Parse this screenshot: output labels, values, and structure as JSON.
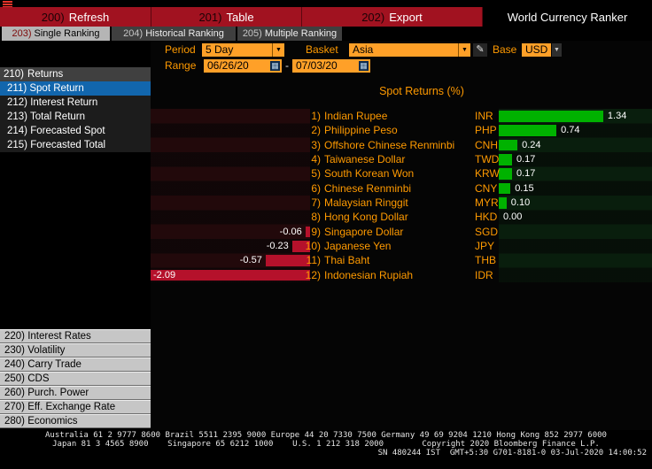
{
  "topbar": {
    "menu": [
      {
        "num": "200)",
        "label": "Refresh"
      },
      {
        "num": "201)",
        "label": "Table"
      },
      {
        "num": "202)",
        "label": "Export"
      }
    ],
    "app_title": "World Currency Ranker"
  },
  "tabs": [
    {
      "num": "203)",
      "label": "Single Ranking",
      "active": true
    },
    {
      "num": "204)",
      "label": "Historical Ranking",
      "active": false
    },
    {
      "num": "205)",
      "label": "Multiple Ranking",
      "active": false
    }
  ],
  "sidebar": {
    "header": {
      "num": "210)",
      "label": "Returns"
    },
    "items": [
      {
        "num": "211)",
        "label": "Spot Return",
        "selected": true
      },
      {
        "num": "212)",
        "label": "Interest Return",
        "selected": false
      },
      {
        "num": "213)",
        "label": "Total Return",
        "selected": false
      },
      {
        "num": "214)",
        "label": "Forecasted Spot",
        "selected": false
      },
      {
        "num": "215)",
        "label": "Forecasted Total",
        "selected": false
      }
    ],
    "bottom_items": [
      {
        "num": "220)",
        "label": "Interest Rates"
      },
      {
        "num": "230)",
        "label": "Volatility"
      },
      {
        "num": "240)",
        "label": "Carry Trade"
      },
      {
        "num": "250)",
        "label": "CDS"
      },
      {
        "num": "260)",
        "label": "Purch. Power"
      },
      {
        "num": "270)",
        "label": "Eff. Exchange Rate"
      },
      {
        "num": "280)",
        "label": "Economics"
      }
    ]
  },
  "controls": {
    "period_label": "Period",
    "period_value": "5 Day",
    "basket_label": "Basket",
    "basket_value": "Asia",
    "base_label": "Base",
    "base_value": "USD",
    "range_label": "Range",
    "range_start": "06/26/20",
    "range_separator": "-",
    "range_end": "07/03/20"
  },
  "chart_data": {
    "type": "bar",
    "orientation": "horizontal",
    "title": "Spot Returns (%)",
    "value_unit": "percent",
    "xlim": [
      -2.2,
      1.6
    ],
    "positive_color": "#00b200",
    "negative_color": "#b5112b",
    "rows": [
      {
        "rank": "1)",
        "name": "Indian Rupee",
        "ticker": "INR",
        "value": 1.34
      },
      {
        "rank": "2)",
        "name": "Philippine Peso",
        "ticker": "PHP",
        "value": 0.74
      },
      {
        "rank": "3)",
        "name": "Offshore Chinese Renminbi",
        "ticker": "CNH",
        "value": 0.24
      },
      {
        "rank": "4)",
        "name": "Taiwanese Dollar",
        "ticker": "TWD",
        "value": 0.17
      },
      {
        "rank": "5)",
        "name": "South Korean Won",
        "ticker": "KRW",
        "value": 0.17
      },
      {
        "rank": "6)",
        "name": "Chinese Renminbi",
        "ticker": "CNY",
        "value": 0.15
      },
      {
        "rank": "7)",
        "name": "Malaysian Ringgit",
        "ticker": "MYR",
        "value": 0.1
      },
      {
        "rank": "8)",
        "name": "Hong Kong Dollar",
        "ticker": "HKD",
        "value": 0.0
      },
      {
        "rank": "9)",
        "name": "Singapore Dollar",
        "ticker": "SGD",
        "value": -0.06
      },
      {
        "rank": "10)",
        "name": "Japanese Yen",
        "ticker": "JPY",
        "value": -0.23
      },
      {
        "rank": "11)",
        "name": "Thai Baht",
        "ticker": "THB",
        "value": -0.57
      },
      {
        "rank": "12)",
        "name": "Indonesian Rupiah",
        "ticker": "IDR",
        "value": -2.09
      }
    ]
  },
  "footer": {
    "line1": "Australia 61 2 9777 8600 Brazil 5511 2395 9000 Europe 44 20 7330 7500 Germany 49 69 9204 1210 Hong Kong 852 2977 6000",
    "line2": "Japan 81 3 4565 8900    Singapore 65 6212 1000    U.S. 1 212 318 2000        Copyright 2020 Bloomberg Finance L.P.",
    "line3": "SN 480244 IST  GMT+5:30 G701-8181-0 03-Jul-2020 14:00:52"
  }
}
